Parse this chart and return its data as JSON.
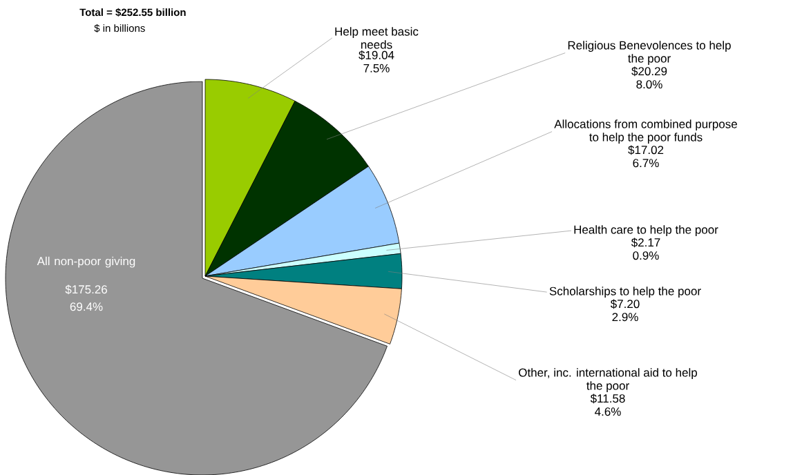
{
  "chart_data": {
    "type": "pie",
    "title": "Total  = $252.55 billion",
    "subtitle": "$ in billions",
    "categories": [
      "Help meet basic needs",
      "Religious Benevolences to help the poor",
      "Allocations from combined purpose to help the poor funds",
      "Health care to help the poor",
      "Scholarships to help the poor",
      "Other, inc. international aid to help the poor",
      "All non-poor giving"
    ],
    "values": [
      19.04,
      20.29,
      17.02,
      2.17,
      7.2,
      11.58,
      175.26
    ],
    "value_labels": [
      "$19.04",
      "$20.29",
      "$17.02",
      "$2.17",
      "$7.20",
      "$11.58",
      "$175.26"
    ],
    "annotations": [
      "7.5%",
      "8.0%",
      "6.7%",
      "0.9%",
      "2.9%",
      "4.6%",
      "69.4%"
    ],
    "colors": [
      "#99cc00",
      "#003300",
      "#99ccff",
      "#ccffff",
      "#008080",
      "#ffcc99",
      "#969696"
    ]
  }
}
